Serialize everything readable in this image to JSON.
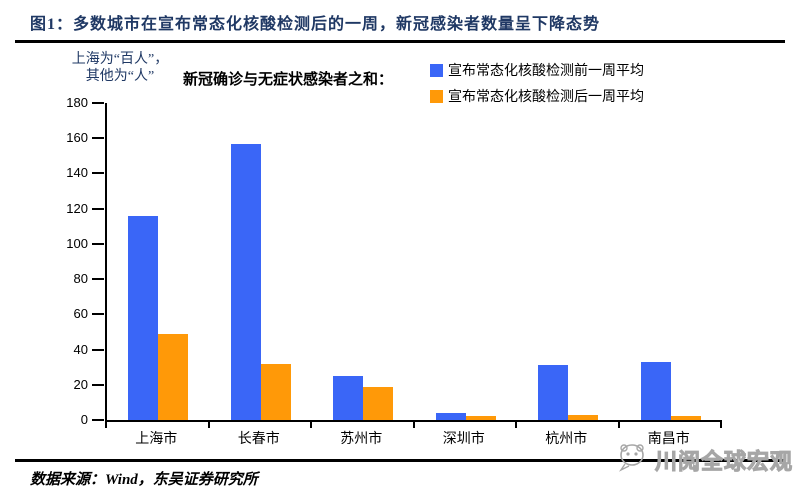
{
  "header": {
    "title": "图1：多数城市在宣布常态化核酸检测后的一周，新冠感染者数量呈下降态势"
  },
  "chart": {
    "unit_note_line1": "上海为“百人”，",
    "unit_note_line2": "其他为“人”",
    "legend_title": "新冠确诊与无症状感染者之和："
  },
  "chart_data": {
    "type": "bar",
    "title": "新冠确诊与无症状感染者之和",
    "categories": [
      "上海市",
      "长春市",
      "苏州市",
      "深圳市",
      "杭州市",
      "南昌市"
    ],
    "series": [
      {
        "name": "宣布常态化核酸检测前一周平均",
        "color": "#3A66F7",
        "values": [
          116,
          157,
          25,
          4,
          31,
          33
        ]
      },
      {
        "name": "宣布常态化核酸检测后一周平均",
        "color": "#FF9908",
        "values": [
          49,
          32,
          19,
          2.5,
          3,
          2.5
        ]
      }
    ],
    "xlabel": "",
    "ylabel": "上海为“百人”，其他为“人”",
    "ylim": [
      0,
      180
    ],
    "yticks": [
      0,
      20,
      40,
      60,
      80,
      100,
      120,
      140,
      160,
      180
    ],
    "grid": false,
    "legend_position": "top-right"
  },
  "footer": {
    "source": "数据来源：Wind，东吴证券研究所"
  },
  "watermark": {
    "text": "川阅全球宏观"
  },
  "colors": {
    "title": "#1F3864",
    "bar_pre": "#3A66F7",
    "bar_post": "#FF9908"
  }
}
